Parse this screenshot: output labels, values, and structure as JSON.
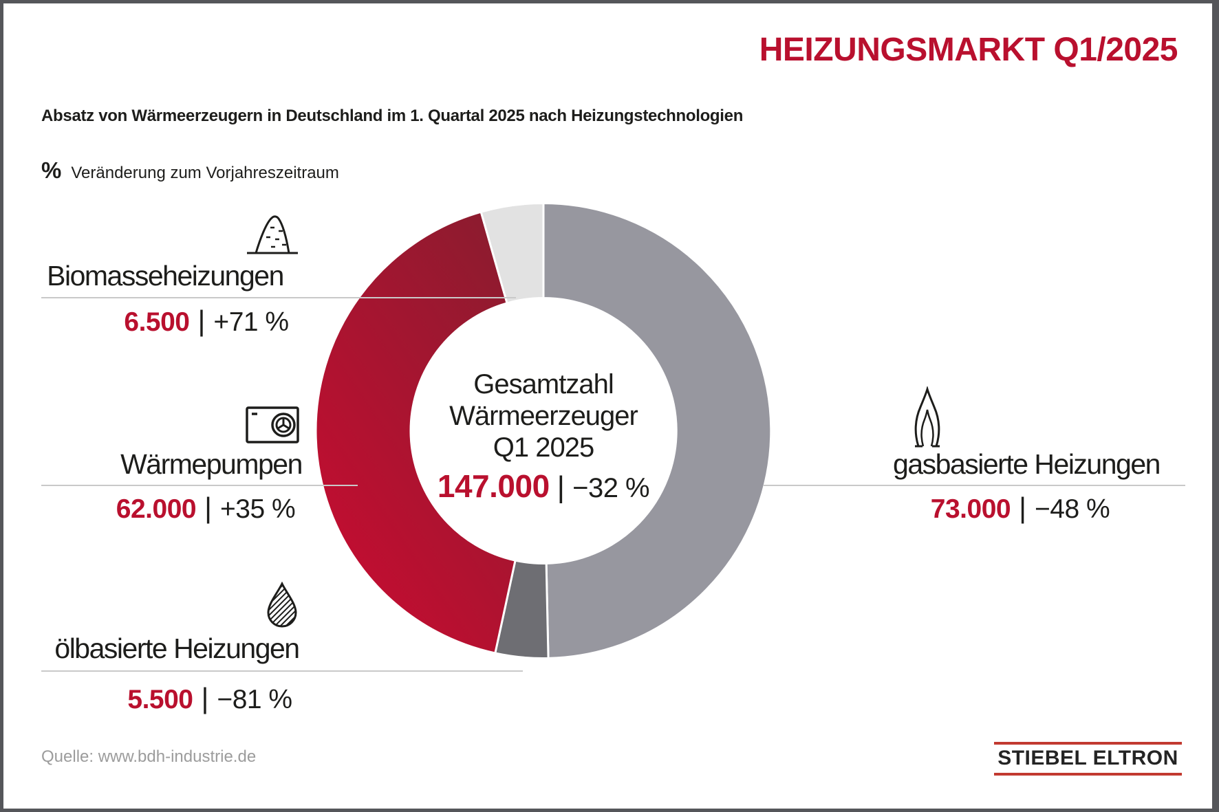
{
  "title": "HEIZUNGSMARKT Q1/2025",
  "subtitle": "Absatz von Wärmeerzeugern in Deutschland im 1. Quartal 2025 nach Heizungstechnologien",
  "legend_note": {
    "symbol": "%",
    "text": "Veränderung zum Vorjahreszeitraum"
  },
  "center": {
    "line1": "Gesamtzahl",
    "line2": "Wärmeerzeuger",
    "line3": "Q1 2025",
    "total": "147.000",
    "separator": "|",
    "change": "−32 %"
  },
  "categories": [
    {
      "id": "biomass",
      "label": "Biomasseheizungen",
      "value": "6.500",
      "separator": "|",
      "change": "+71 %",
      "icon": "pellet-pile-icon",
      "color": "#e2e2e2"
    },
    {
      "id": "heatpump",
      "label": "Wärmepumpen",
      "value": "62.000",
      "separator": "|",
      "change": "+35 %",
      "icon": "heat-pump-icon",
      "color": "#c40d31"
    },
    {
      "id": "oil",
      "label": "ölbasierte Heizungen",
      "value": "5.500",
      "separator": "|",
      "change": "−81 %",
      "icon": "oil-drop-icon",
      "color": "#6e6e73"
    },
    {
      "id": "gas",
      "label": "gasbasierte Heizungen",
      "value": "73.000",
      "separator": "|",
      "change": "−48 %",
      "icon": "gas-flame-icon",
      "color": "#97979f"
    }
  ],
  "source": "Quelle: www.bdh-industrie.de",
  "logo": "STIEBEL ELTRON",
  "colors": {
    "accent_red": "#b9102e",
    "gas_gray": "#97979f",
    "oil_gray": "#6e6e73",
    "biomass_gray": "#e2e2e2",
    "logo_red": "#c23a30",
    "frame_gray": "#55565a",
    "source_gray": "#9c9c9c"
  },
  "chart_data": {
    "type": "pie",
    "subtype": "donut",
    "title": "Absatz von Wärmeerzeugern in Deutschland im 1. Quartal 2025 nach Heizungstechnologien",
    "note": "% Veränderung zum Vorjahreszeitraum",
    "total": 147000,
    "total_label": "147.000",
    "total_change_pct": -32,
    "legend_position": "sides",
    "segments_clockwise_from_top": [
      {
        "id": "gas",
        "label": "gasbasierte Heizungen",
        "value": 73000,
        "change_pct": -48,
        "color": "#97979f"
      },
      {
        "id": "oil",
        "label": "ölbasierte Heizungen",
        "value": 5500,
        "change_pct": -81,
        "color": "#6e6e73"
      },
      {
        "id": "heatpump",
        "label": "Wärmepumpen",
        "value": 62000,
        "change_pct": 35,
        "color": "#c40d31",
        "gradient": [
          "#8e1b2f",
          "#c40d31"
        ]
      },
      {
        "id": "biomass",
        "label": "Biomasseheizungen",
        "value": 6500,
        "change_pct": 71,
        "color": "#e2e2e2"
      }
    ]
  }
}
